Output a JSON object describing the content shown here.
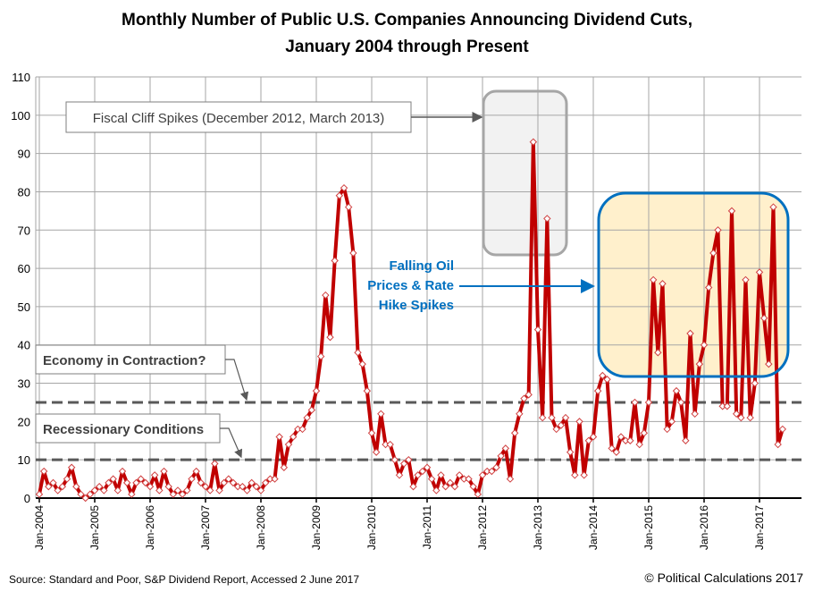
{
  "chart_data": {
    "type": "line",
    "title_line1": "Monthly Number of Public U.S. Companies Announcing Dividend Cuts,",
    "title_line2": "January 2004 through Present",
    "xlabel": "",
    "ylabel": "",
    "ylim": [
      0,
      110
    ],
    "yticks": [
      0,
      10,
      20,
      30,
      40,
      50,
      60,
      70,
      80,
      90,
      100,
      110
    ],
    "xtick_labels": [
      "Jan-2004",
      "Jan-2005",
      "Jan-2006",
      "Jan-2007",
      "Jan-2008",
      "Jan-2009",
      "Jan-2010",
      "Jan-2011",
      "Jan-2012",
      "Jan-2013",
      "Jan-2014",
      "Jan-2015",
      "Jan-2016",
      "Jan-2017"
    ],
    "grid": true,
    "line_color": "#C00000",
    "start": "2004-01",
    "values": [
      1,
      7,
      3,
      4,
      2,
      3,
      5,
      8,
      3,
      1,
      0,
      1,
      2,
      3,
      2,
      4,
      5,
      2,
      7,
      4,
      1,
      4,
      5,
      4,
      3,
      6,
      2,
      7,
      3,
      1,
      2,
      1,
      2,
      5,
      7,
      4,
      3,
      2,
      9,
      2,
      4,
      5,
      4,
      3,
      3,
      2,
      4,
      3,
      2,
      4,
      5,
      5,
      16,
      8,
      14,
      16,
      18,
      18,
      21,
      23,
      28,
      37,
      53,
      42,
      62,
      79,
      81,
      76,
      64,
      38,
      35,
      28,
      17,
      12,
      22,
      14,
      14,
      10,
      6,
      9,
      10,
      3,
      6,
      7,
      8,
      5,
      2,
      6,
      3,
      4,
      3,
      6,
      5,
      5,
      3,
      1,
      6,
      7,
      7,
      8,
      11,
      13,
      5,
      17,
      22,
      26,
      27,
      93,
      44,
      21,
      73,
      21,
      18,
      19,
      21,
      12,
      6,
      20,
      6,
      15,
      16,
      28,
      32,
      31,
      13,
      12,
      16,
      15,
      15,
      25,
      14,
      17,
      25,
      57,
      38,
      56,
      18,
      20,
      28,
      25,
      15,
      43,
      22,
      35,
      40,
      55,
      64,
      70,
      24,
      24,
      75,
      22,
      21,
      57,
      21,
      30,
      59,
      47,
      35,
      76,
      14,
      18
    ],
    "reference_lines": [
      {
        "value": 25,
        "label": "Economy in Contraction?"
      },
      {
        "value": 10,
        "label": "Recessionary Conditions"
      }
    ],
    "annotations": {
      "fiscal_cliff": "Fiscal Cliff Spikes (December 2012, March 2013)",
      "falling_oil": [
        "Falling Oil",
        "Prices & Rate",
        "Hike Spikes"
      ]
    },
    "colors": {
      "fiscal_box": "#F2F2F2",
      "oil_box": "#FFF0CC",
      "oil_border": "#0070C0",
      "oil_text": "#0070C0",
      "ref_line": "#595959"
    }
  },
  "footer": {
    "source": "Source:  Standard and Poor, S&P Dividend  Report, Accessed 2 June  2017",
    "copyright": "© Political Calculations 2017"
  }
}
